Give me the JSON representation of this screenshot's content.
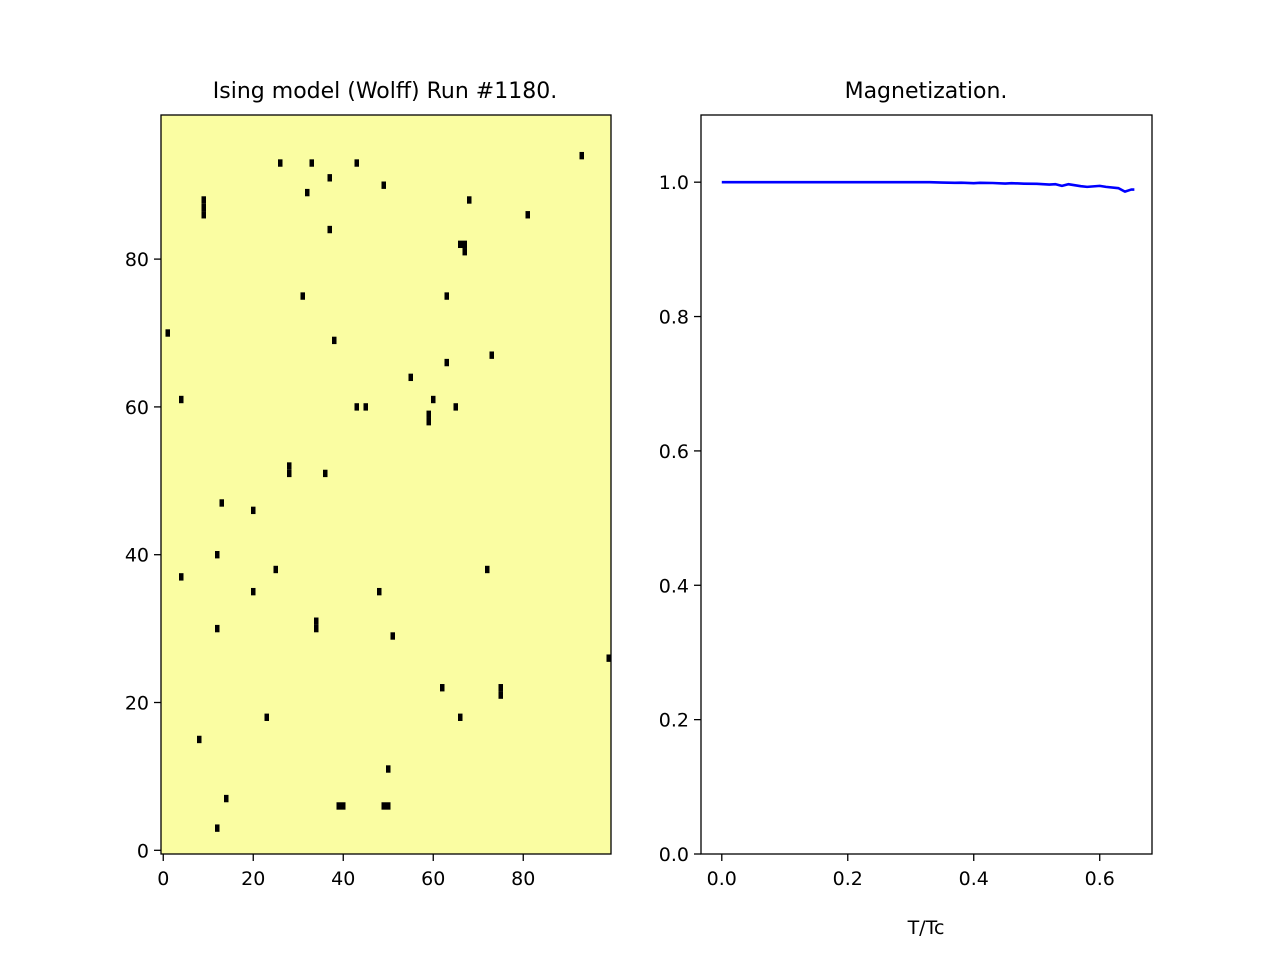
{
  "chart_data": [
    {
      "type": "heatmap",
      "title": "Ising model (Wolff) Run #1180.",
      "grid_size": [
        100,
        100
      ],
      "xlim": [
        -0.5,
        99.5
      ],
      "ylim": [
        99.5,
        -0.5
      ],
      "xticks": [
        0,
        20,
        40,
        60,
        80
      ],
      "yticks": [
        0,
        20,
        40,
        60,
        80
      ],
      "xlabel": "",
      "ylabel": "",
      "colors": {
        "up": "#fafda2",
        "down": "#000000"
      },
      "down_spins": [
        [
          12,
          4
        ],
        [
          14,
          8
        ],
        [
          39,
          7
        ],
        [
          40,
          7
        ],
        [
          49,
          7
        ],
        [
          50,
          7
        ],
        [
          50,
          12
        ],
        [
          8,
          16
        ],
        [
          23,
          19
        ],
        [
          66,
          19
        ],
        [
          62,
          23
        ],
        [
          75,
          22
        ],
        [
          75,
          23
        ],
        [
          99,
          27
        ],
        [
          51,
          30
        ],
        [
          12,
          31
        ],
        [
          34,
          31
        ],
        [
          34,
          32
        ],
        [
          20,
          36
        ],
        [
          48,
          36
        ],
        [
          4,
          38
        ],
        [
          25,
          39
        ],
        [
          72,
          39
        ],
        [
          12,
          41
        ],
        [
          20,
          47
        ],
        [
          13,
          48
        ],
        [
          28,
          52
        ],
        [
          28,
          53
        ],
        [
          36,
          52
        ],
        [
          59,
          59
        ],
        [
          59,
          60
        ],
        [
          43,
          61
        ],
        [
          45,
          61
        ],
        [
          65,
          61
        ],
        [
          60,
          62
        ],
        [
          4,
          62
        ],
        [
          55,
          65
        ],
        [
          63,
          67
        ],
        [
          73,
          68
        ],
        [
          38,
          70
        ],
        [
          1,
          71
        ],
        [
          31,
          76
        ],
        [
          63,
          76
        ],
        [
          67,
          82
        ],
        [
          66,
          83
        ],
        [
          67,
          83
        ],
        [
          37,
          85
        ],
        [
          81,
          87
        ],
        [
          9,
          87
        ],
        [
          9,
          88
        ],
        [
          9,
          89
        ],
        [
          68,
          89
        ],
        [
          32,
          90
        ],
        [
          49,
          91
        ],
        [
          37,
          92
        ],
        [
          26,
          94
        ],
        [
          33,
          94
        ],
        [
          43,
          94
        ],
        [
          93,
          95
        ]
      ]
    },
    {
      "type": "line",
      "title": "Magnetization.",
      "xlabel": "T/Tc",
      "ylabel": "",
      "xlim": [
        -0.033,
        0.683
      ],
      "ylim": [
        0.0,
        1.1
      ],
      "xticks": [
        "0.0",
        "0.2",
        "0.4",
        "0.6"
      ],
      "yticks": [
        "0.0",
        "0.2",
        "0.4",
        "0.6",
        "0.8",
        "1.0"
      ],
      "grid": false,
      "series": [
        {
          "color": "#0000ff",
          "x": [
            0.0,
            0.05,
            0.1,
            0.15,
            0.2,
            0.25,
            0.3,
            0.33,
            0.35,
            0.37,
            0.38,
            0.4,
            0.41,
            0.43,
            0.45,
            0.46,
            0.48,
            0.5,
            0.52,
            0.53,
            0.54,
            0.55,
            0.57,
            0.58,
            0.6,
            0.61,
            0.63,
            0.64,
            0.65,
            0.655
          ],
          "y": [
            1.0,
            1.0,
            1.0,
            1.0,
            1.0,
            1.0,
            1.0,
            1.0,
            0.9995,
            0.999,
            0.9993,
            0.9985,
            0.999,
            0.9988,
            0.998,
            0.9985,
            0.9978,
            0.9975,
            0.9965,
            0.997,
            0.9945,
            0.997,
            0.994,
            0.993,
            0.9945,
            0.993,
            0.991,
            0.986,
            0.989,
            0.989
          ]
        }
      ]
    }
  ]
}
